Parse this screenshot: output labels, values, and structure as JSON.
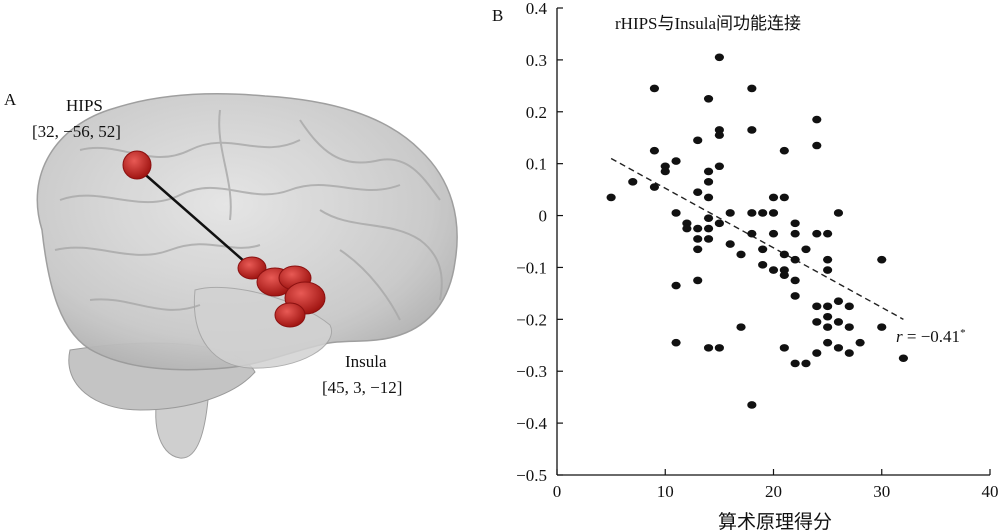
{
  "panel_a": {
    "letter": "A",
    "hips_name": "HIPS",
    "hips_coords": "[32, −56, 52]",
    "insula_name": "Insula",
    "insula_coords": "[45, 3, −12]",
    "colors": {
      "brain": "#c9c9c9",
      "roi": "#c0201e",
      "connection": "#111111"
    }
  },
  "panel_b": {
    "letter": "B",
    "r_label": "r",
    "r_value": " = −0.41",
    "r_sig": "*"
  },
  "chart_data": {
    "type": "scatter",
    "title": "rHIPS与Insula间功能连接",
    "xlabel": "算术原理得分",
    "ylabel": "",
    "xlim": [
      0,
      40
    ],
    "ylim": [
      -0.5,
      0.4
    ],
    "xticks": [
      0,
      10,
      20,
      30,
      40
    ],
    "yticks": [
      0.4,
      0.3,
      0.2,
      0.1,
      0,
      -0.1,
      -0.2,
      -0.3,
      -0.4,
      -0.5
    ],
    "ytick_labels": [
      "0.4",
      "0.3",
      "0.2",
      "0.1",
      "0",
      "−0.1",
      "−0.2",
      "−0.3",
      "−0.4",
      "−0.5"
    ],
    "grid": false,
    "trendline": {
      "style": "dashed",
      "x": [
        5,
        32
      ],
      "y": [
        0.11,
        -0.2
      ]
    },
    "points": [
      [
        5,
        0.035
      ],
      [
        7,
        0.065
      ],
      [
        9,
        0.245
      ],
      [
        9,
        0.125
      ],
      [
        9,
        0.055
      ],
      [
        10,
        0.095
      ],
      [
        10,
        0.085
      ],
      [
        11,
        0.105
      ],
      [
        11,
        0.005
      ],
      [
        11,
        -0.135
      ],
      [
        11,
        -0.245
      ],
      [
        12,
        -0.015
      ],
      [
        12,
        -0.025
      ],
      [
        13,
        0.145
      ],
      [
        13,
        0.045
      ],
      [
        13,
        -0.025
      ],
      [
        13,
        -0.045
      ],
      [
        13,
        -0.065
      ],
      [
        13,
        -0.125
      ],
      [
        14,
        0.225
      ],
      [
        14,
        0.085
      ],
      [
        14,
        0.065
      ],
      [
        14,
        0.035
      ],
      [
        14,
        -0.005
      ],
      [
        14,
        -0.025
      ],
      [
        14,
        -0.045
      ],
      [
        14,
        -0.255
      ],
      [
        15,
        0.305
      ],
      [
        15,
        0.165
      ],
      [
        15,
        0.155
      ],
      [
        15,
        0.095
      ],
      [
        15,
        -0.015
      ],
      [
        15,
        -0.255
      ],
      [
        16,
        0.005
      ],
      [
        16,
        -0.055
      ],
      [
        17,
        -0.075
      ],
      [
        17,
        -0.215
      ],
      [
        18,
        0.245
      ],
      [
        18,
        0.165
      ],
      [
        18,
        0.005
      ],
      [
        18,
        -0.035
      ],
      [
        18,
        -0.365
      ],
      [
        19,
        0.005
      ],
      [
        19,
        -0.065
      ],
      [
        19,
        -0.095
      ],
      [
        20,
        0.035
      ],
      [
        20,
        0.005
      ],
      [
        20,
        -0.105
      ],
      [
        20,
        -0.035
      ],
      [
        21,
        0.125
      ],
      [
        21,
        0.035
      ],
      [
        21,
        -0.075
      ],
      [
        21,
        -0.105
      ],
      [
        21,
        -0.115
      ],
      [
        21,
        -0.255
      ],
      [
        22,
        -0.015
      ],
      [
        22,
        -0.035
      ],
      [
        22,
        -0.085
      ],
      [
        22,
        -0.125
      ],
      [
        22,
        -0.155
      ],
      [
        22,
        -0.285
      ],
      [
        23,
        -0.065
      ],
      [
        23,
        -0.285
      ],
      [
        24,
        0.185
      ],
      [
        24,
        0.135
      ],
      [
        24,
        -0.035
      ],
      [
        24,
        -0.175
      ],
      [
        24,
        -0.205
      ],
      [
        24,
        -0.265
      ],
      [
        25,
        -0.035
      ],
      [
        25,
        -0.085
      ],
      [
        25,
        -0.105
      ],
      [
        25,
        -0.175
      ],
      [
        25,
        -0.195
      ],
      [
        25,
        -0.215
      ],
      [
        25,
        -0.245
      ],
      [
        26,
        0.005
      ],
      [
        26,
        -0.165
      ],
      [
        26,
        -0.205
      ],
      [
        26,
        -0.255
      ],
      [
        27,
        -0.175
      ],
      [
        27,
        -0.215
      ],
      [
        27,
        -0.265
      ],
      [
        28,
        -0.245
      ],
      [
        30,
        -0.085
      ],
      [
        30,
        -0.215
      ],
      [
        32,
        -0.275
      ]
    ]
  }
}
